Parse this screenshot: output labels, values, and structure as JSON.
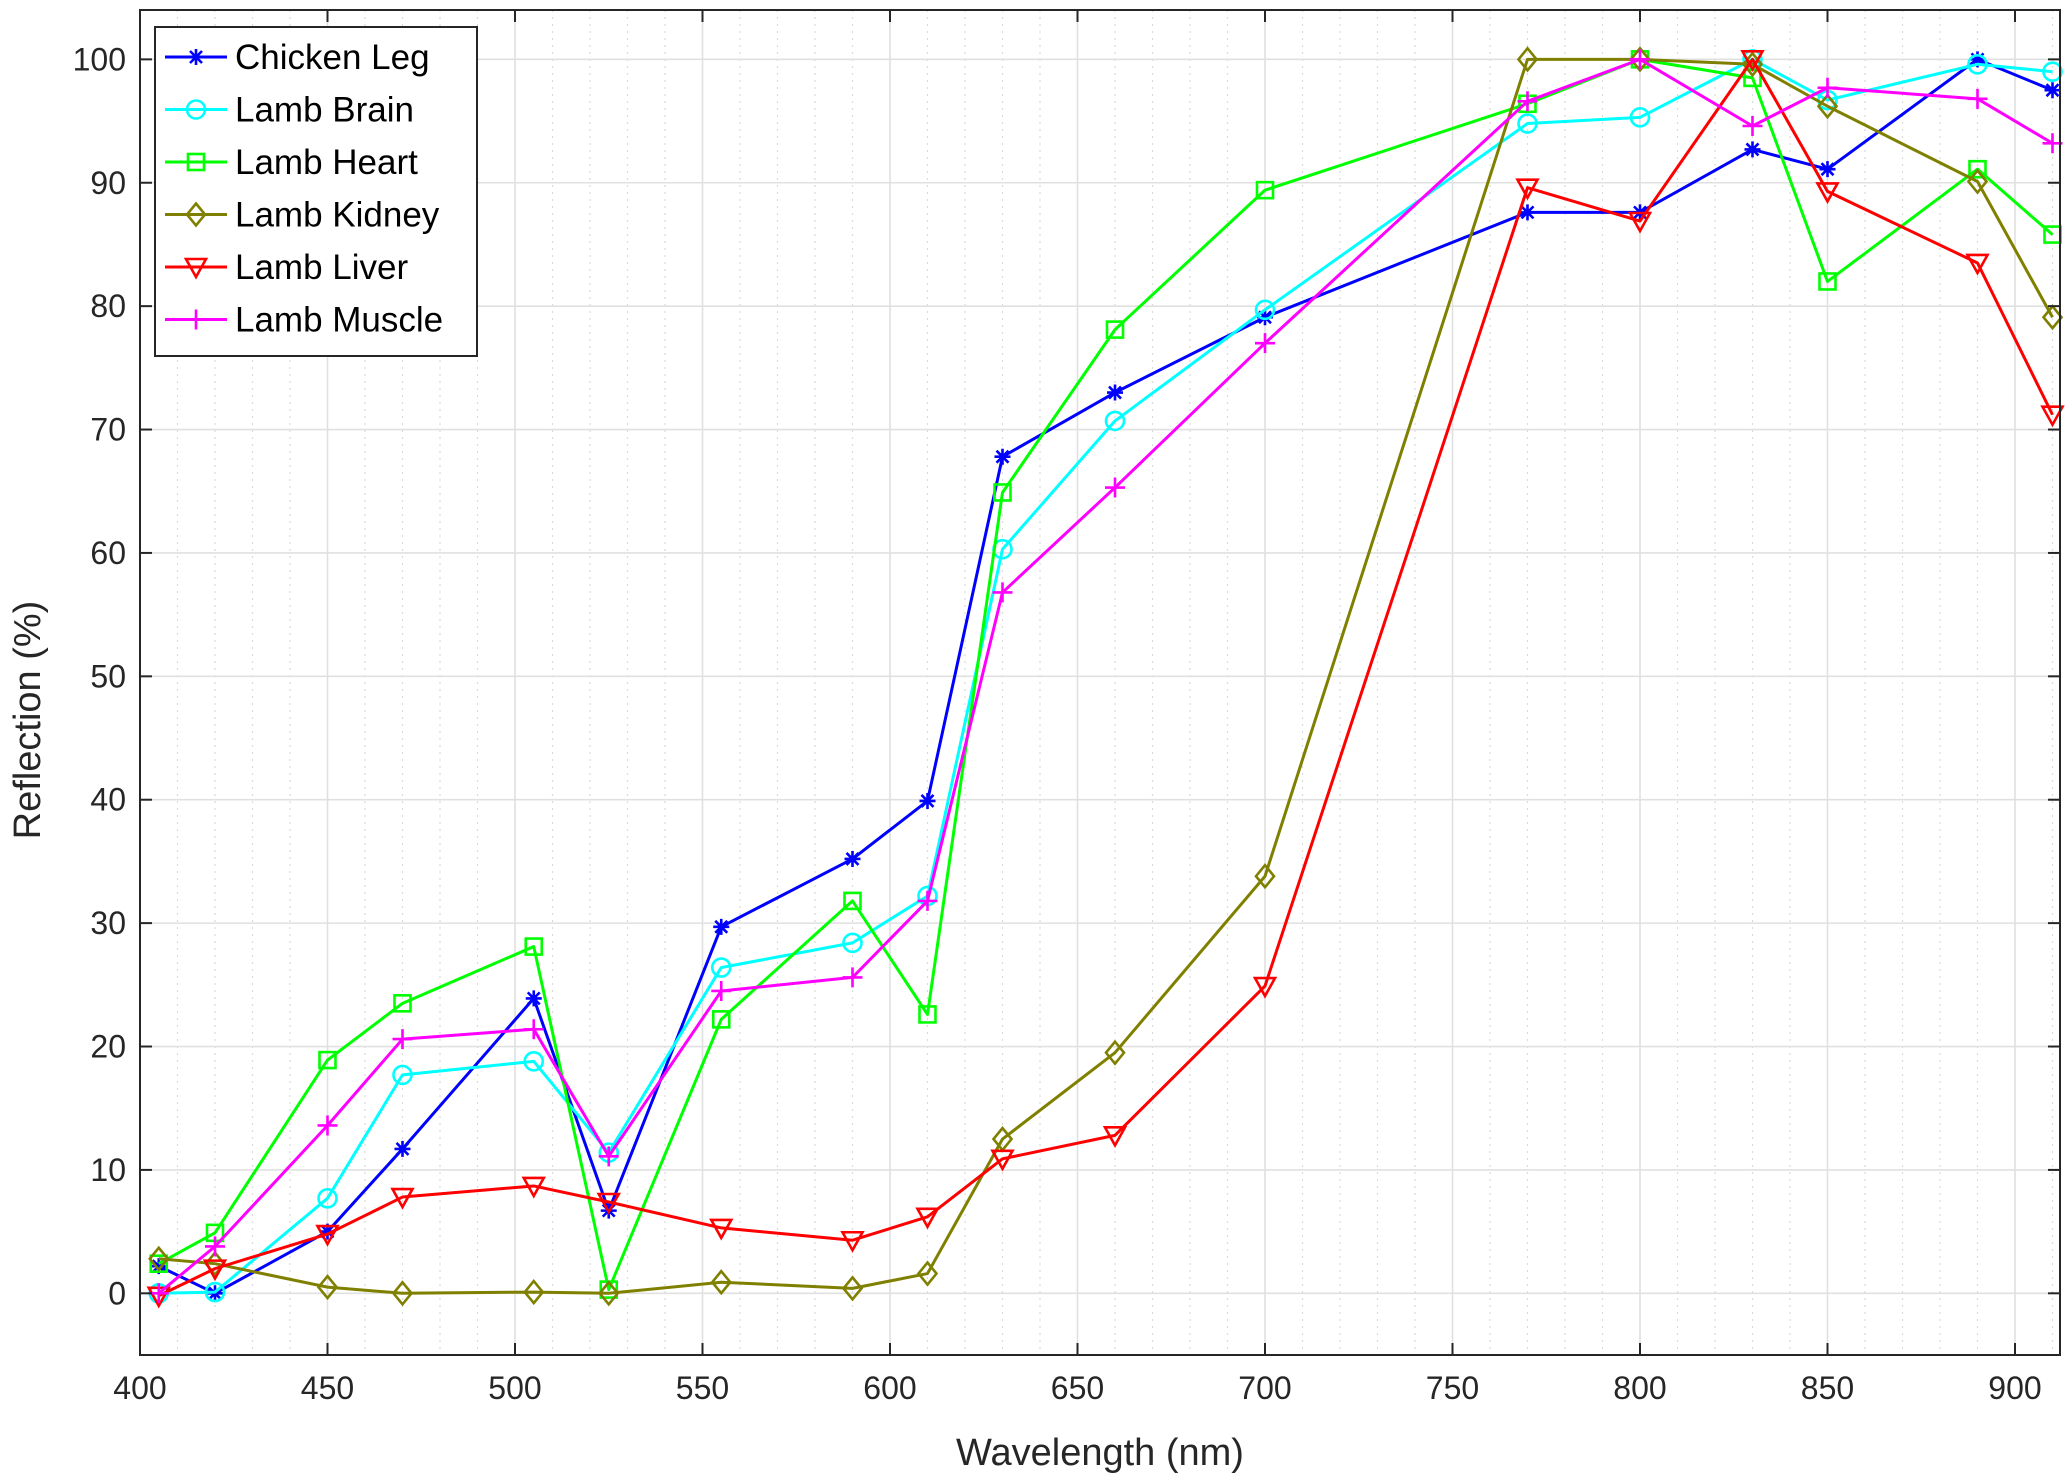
{
  "chart_data": {
    "type": "line",
    "title": "",
    "xlabel": "Wavelength (nm)",
    "ylabel": "Reflection (%)",
    "xlim": [
      400,
      912
    ],
    "ylim": [
      -5,
      104
    ],
    "xticks": [
      400,
      450,
      500,
      550,
      600,
      650,
      700,
      750,
      800,
      850,
      900
    ],
    "yticks": [
      0,
      10,
      20,
      30,
      40,
      50,
      60,
      70,
      80,
      90,
      100
    ],
    "grid": true,
    "minor_grid": true,
    "legend_position": "top-left",
    "x": [
      405,
      420,
      450,
      470,
      505,
      525,
      555,
      590,
      610,
      630,
      660,
      700,
      770,
      800,
      830,
      850,
      890,
      910
    ],
    "series": [
      {
        "name": "Chicken Leg",
        "color": "#0000ff",
        "marker": "asterisk",
        "values": [
          2.2,
          0,
          5,
          11.7,
          23.9,
          6.7,
          29.7,
          35.2,
          39.9,
          67.8,
          73,
          79.1,
          87.6,
          87.6,
          92.7,
          91.1,
          100,
          97.5
        ]
      },
      {
        "name": "Lamb Brain",
        "color": "#00ffff",
        "marker": "circle",
        "values": [
          0,
          0.1,
          7.7,
          17.7,
          18.8,
          11.4,
          26.4,
          28.4,
          32.2,
          60.3,
          70.7,
          79.7,
          94.8,
          95.3,
          100,
          96.7,
          99.6,
          99
        ]
      },
      {
        "name": "Lamb Heart",
        "color": "#00ff00",
        "marker": "square",
        "values": [
          2.4,
          4.9,
          18.9,
          23.5,
          28.1,
          0.3,
          22.2,
          31.8,
          22.6,
          64.9,
          78.1,
          89.4,
          96.4,
          100,
          98.5,
          82,
          91.1,
          85.8
        ]
      },
      {
        "name": "Lamb Kidney",
        "color": "#808000",
        "marker": "diamond",
        "values": [
          2.8,
          2.4,
          0.5,
          0,
          0.1,
          0,
          0.9,
          0.4,
          1.6,
          12.5,
          19.5,
          33.8,
          100,
          100,
          99.6,
          96.2,
          90.1,
          79.1
        ]
      },
      {
        "name": "Lamb Liver",
        "color": "#ff0000",
        "marker": "triangle-down",
        "values": [
          -0.2,
          2,
          4.8,
          7.8,
          8.7,
          7.4,
          5.3,
          4.3,
          6.2,
          10.9,
          12.8,
          24.9,
          89.6,
          86.9,
          100,
          89.3,
          83.5,
          71.2
        ]
      },
      {
        "name": "Lamb Muscle",
        "color": "#ff00ff",
        "marker": "plus",
        "values": [
          0,
          3.8,
          13.6,
          20.6,
          21.4,
          11.1,
          24.5,
          25.6,
          31.8,
          56.8,
          65.3,
          77,
          96.6,
          100,
          94.6,
          97.7,
          96.8,
          93.2
        ]
      }
    ]
  }
}
